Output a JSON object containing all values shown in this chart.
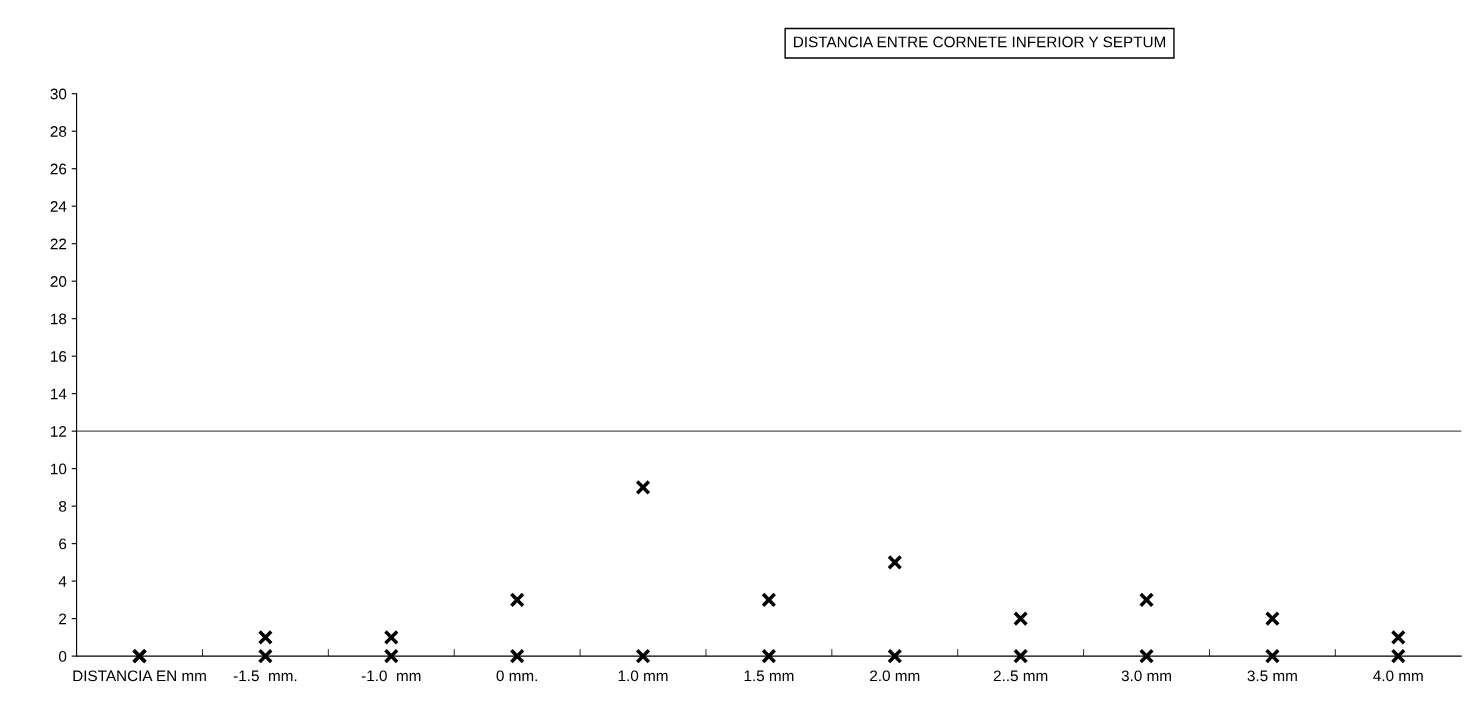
{
  "chart_data": {
    "type": "scatter",
    "title": "DISTANCIA ENTRE CORNETE INFERIOR Y SEPTUM",
    "categories": [
      "DISTANCIA EN mm",
      "-1.5  mm.",
      "-1.0  mm",
      "0 mm.",
      "1.0 mm",
      "1.5 mm",
      "2.0 mm",
      "2..5 mm",
      "3.0 mm",
      "3.5 mm",
      "4.0 mm"
    ],
    "series": [
      {
        "color": "#000000",
        "values": [
          0,
          1,
          1,
          3,
          9,
          3,
          5,
          2,
          3,
          2,
          1
        ]
      },
      {
        "color": "#000000",
        "values": [
          0,
          0,
          0,
          0,
          0,
          0,
          0,
          0,
          0,
          0,
          0
        ]
      }
    ],
    "ylim": [
      0,
      30
    ],
    "yticks": [
      0,
      2,
      4,
      6,
      8,
      10,
      12,
      14,
      16,
      18,
      20,
      22,
      24,
      26,
      28,
      30
    ],
    "ref_lines": [
      {
        "axis": "y",
        "value": 12,
        "color": "#555555",
        "line_style": "solid"
      }
    ],
    "marker": "cross",
    "grid": false,
    "legend": false
  }
}
